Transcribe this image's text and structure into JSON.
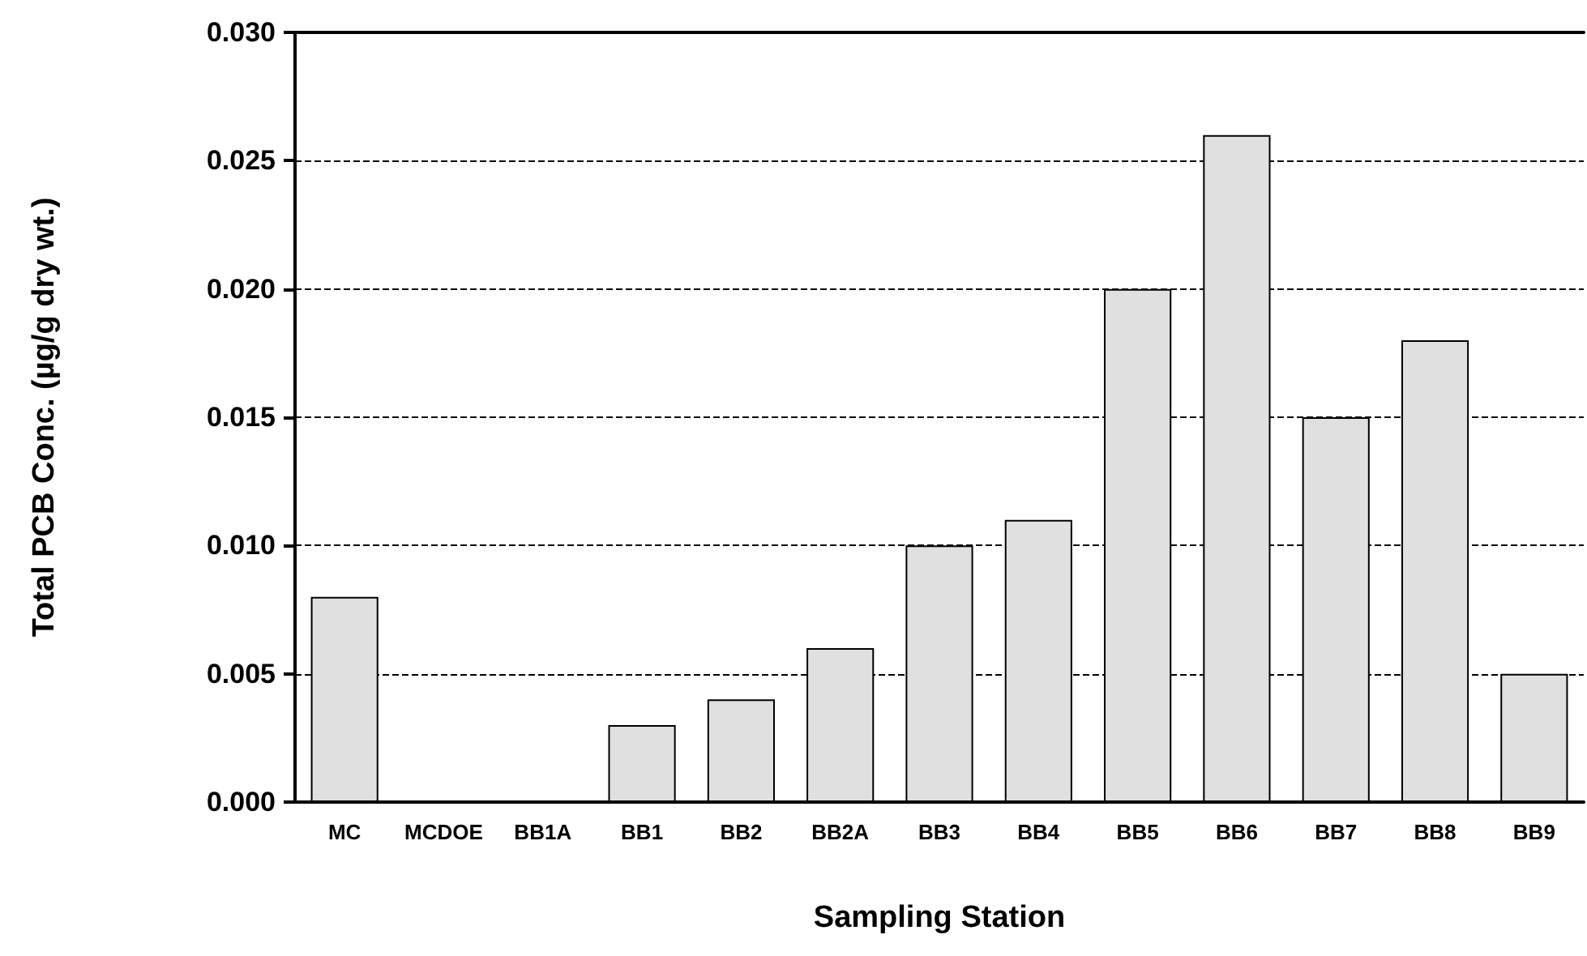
{
  "chart_data": {
    "type": "bar",
    "xlabel": "Sampling Station",
    "ylabel": "Total PCB Conc. (µg/g dry wt.)",
    "categories": [
      "MC",
      "MCDOE",
      "BB1A",
      "BB1",
      "BB2",
      "BB2A",
      "BB3",
      "BB4",
      "BB5",
      "BB6",
      "BB7",
      "BB8",
      "BB9"
    ],
    "values": [
      0.008,
      null,
      null,
      0.003,
      0.004,
      0.006,
      0.01,
      0.011,
      0.02,
      0.026,
      0.015,
      0.018,
      0.005
    ],
    "color": "#e0e0e0",
    "ylim": [
      0,
      0.03
    ],
    "yticks": [
      {
        "value": 0,
        "label": "0.000"
      },
      {
        "value": 0.005,
        "label": "0.005"
      },
      {
        "value": 0.01,
        "label": "0.010"
      },
      {
        "value": 0.015,
        "label": "0.015"
      },
      {
        "value": 0.02,
        "label": "0.020"
      },
      {
        "value": 0.025,
        "label": "0.025"
      },
      {
        "value": 0.03,
        "label": "0.030"
      }
    ],
    "grid": "y",
    "line_style": "dashed"
  }
}
